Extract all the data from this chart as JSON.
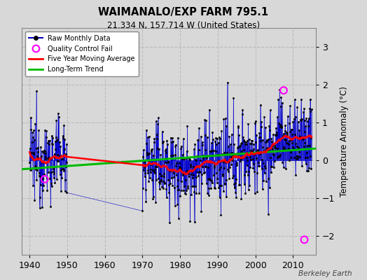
{
  "title": "WAIMANALO/EXP FARM 795.1",
  "subtitle": "21.334 N, 157.714 W (United States)",
  "ylabel": "Temperature Anomaly (°C)",
  "credit": "Berkeley Earth",
  "ylim": [
    -2.5,
    3.5
  ],
  "xlim": [
    1938,
    2016
  ],
  "xticks": [
    1940,
    1950,
    1960,
    1970,
    1980,
    1990,
    2000,
    2010
  ],
  "yticks": [
    -2,
    -1,
    0,
    1,
    2,
    3
  ],
  "bg_color": "#d8d8d8",
  "plot_bg_color": "#d8d8d8",
  "line_color": "#0000cc",
  "ma_color": "#ff0000",
  "trend_color": "#00bb00",
  "qc_color": "#ff00ff",
  "grid_color": "#bbbbbb",
  "start_year": 1940,
  "end_year": 2014,
  "gap_start": 1950,
  "gap_end": 1970
}
